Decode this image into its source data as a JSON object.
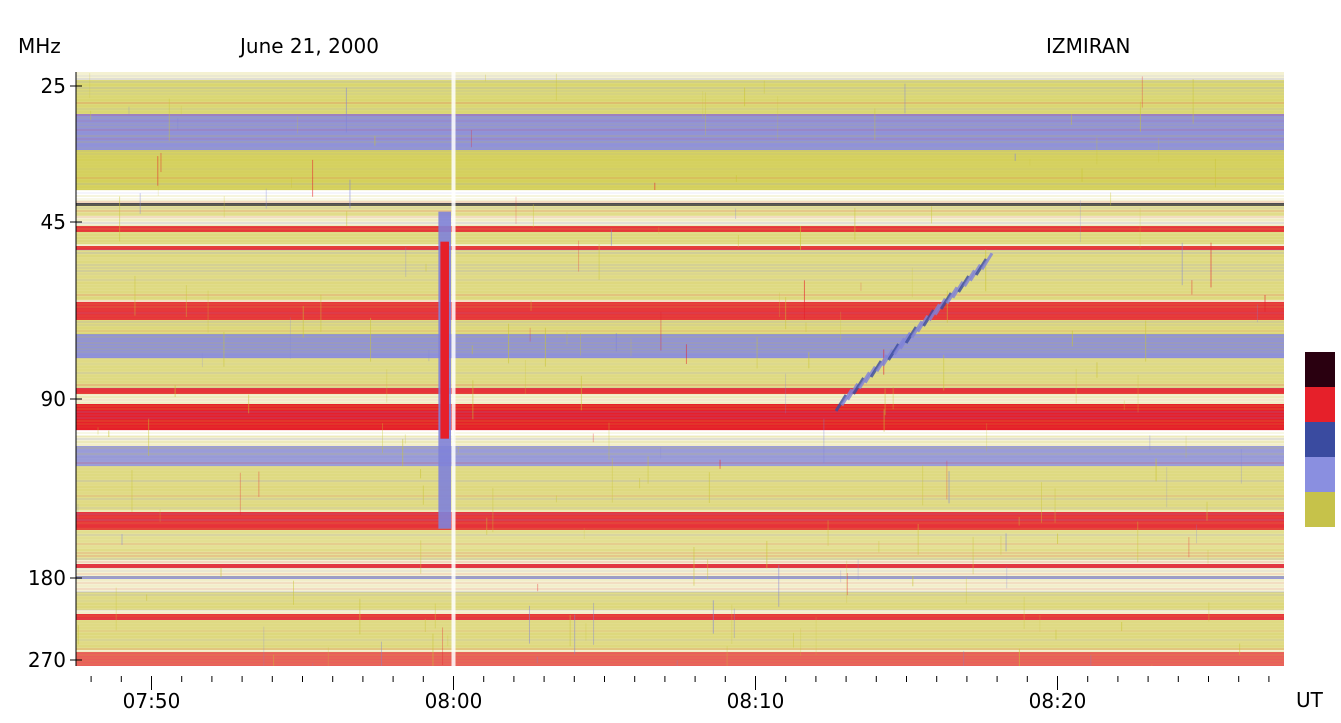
{
  "header": {
    "unit": "MHz",
    "date": "June 21, 2000",
    "observatory": "IZMIRAN",
    "time_unit": "UT"
  },
  "chart_data": {
    "type": "heatmap",
    "title": "June 21, 2000",
    "ylabel": "MHz",
    "xlabel": "UT",
    "y_ticks": [
      "25",
      "45",
      "90",
      "180",
      "270"
    ],
    "x_ticks": [
      "07:50",
      "08:00",
      "08:10",
      "08:20"
    ],
    "x_range_minutes": [
      "07:47:30",
      "08:27:30"
    ],
    "y_range_mhz": [
      25,
      270
    ],
    "colors": {
      "background": "#f4f1d2",
      "low": "#c9c432",
      "mid": "#7f82d9",
      "high": "#e6202a",
      "max": "#2a0010"
    },
    "colorbar": [
      "#2a0010",
      "#e6202a",
      "#3a4ba0",
      "#8a8fe0",
      "#c6c24a",
      "#ffffff"
    ],
    "events": [
      {
        "name": "intense burst",
        "start": "07:59:30",
        "end": "07:59:55",
        "f_from": 50,
        "f_to": 120
      },
      {
        "name": "drifting burst",
        "start": "08:12:40",
        "end": "08:17:30",
        "f_from": 92,
        "f_to": 55
      }
    ]
  }
}
